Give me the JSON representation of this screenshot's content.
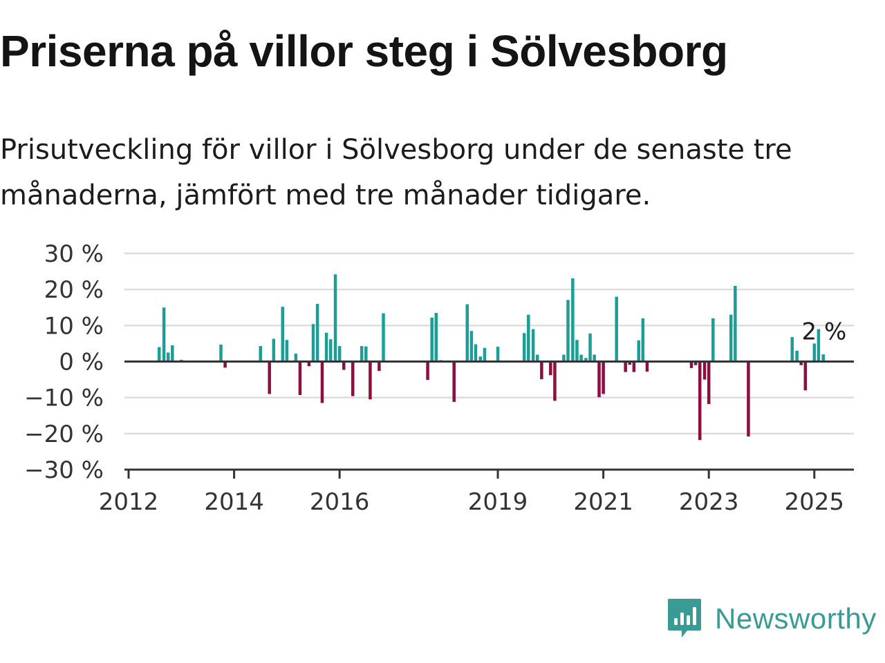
{
  "title": "Priserna på villor steg i Sölvesborg",
  "subtitle": "Prisutveckling för villor i Sölvesborg under de senaste tre månaderna, jämfört med tre månader tidigare.",
  "brand": {
    "name": "Newsworthy",
    "icon": "newsworthy-logo-icon",
    "color": "#3a9a94"
  },
  "colors": {
    "positive": "#1a9e96",
    "negative": "#8c0f3f",
    "grid": "#dddddd",
    "axis": "#333333"
  },
  "chart_data": {
    "type": "bar",
    "title": "",
    "xlabel": "",
    "ylabel": "",
    "ylim": [
      -30,
      30
    ],
    "xlim": [
      2012.0,
      2025.75
    ],
    "grid": true,
    "y_ticks": [
      30,
      20,
      10,
      0,
      -10,
      -20,
      -30
    ],
    "y_tick_labels": [
      "30 %",
      "20 %",
      "10 %",
      "0 %",
      "−10 %",
      "−20 %",
      "−30 %"
    ],
    "x_ticks": [
      2012,
      2014,
      2016,
      2019,
      2021,
      2023,
      2025
    ],
    "x_tick_labels": [
      "2012",
      "2014",
      "2016",
      "2019",
      "2021",
      "2023",
      "2025"
    ],
    "annotation": {
      "text": "2 %",
      "x": 2025.08,
      "value": 2
    },
    "series": [
      {
        "unit": "%",
        "points": [
          {
            "x": 2012.58,
            "y": 4
          },
          {
            "x": 2012.67,
            "y": 15
          },
          {
            "x": 2012.75,
            "y": 2.5
          },
          {
            "x": 2012.83,
            "y": 4.5
          },
          {
            "x": 2013.0,
            "y": 0.5
          },
          {
            "x": 2013.75,
            "y": 4.7
          },
          {
            "x": 2013.83,
            "y": -1.7
          },
          {
            "x": 2014.5,
            "y": 4.3
          },
          {
            "x": 2014.67,
            "y": -9
          },
          {
            "x": 2014.75,
            "y": 6.3
          },
          {
            "x": 2014.92,
            "y": 15.2
          },
          {
            "x": 2015.0,
            "y": 6
          },
          {
            "x": 2015.17,
            "y": 2.2
          },
          {
            "x": 2015.25,
            "y": -9.3
          },
          {
            "x": 2015.42,
            "y": -1.3
          },
          {
            "x": 2015.5,
            "y": 10.4
          },
          {
            "x": 2015.58,
            "y": 16
          },
          {
            "x": 2015.67,
            "y": -11.5
          },
          {
            "x": 2015.75,
            "y": 8
          },
          {
            "x": 2015.83,
            "y": 6.2
          },
          {
            "x": 2015.92,
            "y": 24.2
          },
          {
            "x": 2016.0,
            "y": 4.3
          },
          {
            "x": 2016.08,
            "y": -2.3
          },
          {
            "x": 2016.25,
            "y": -9.6
          },
          {
            "x": 2016.42,
            "y": 4.3
          },
          {
            "x": 2016.5,
            "y": 4.2
          },
          {
            "x": 2016.58,
            "y": -10.5
          },
          {
            "x": 2016.75,
            "y": -2.6
          },
          {
            "x": 2016.83,
            "y": 13.4
          },
          {
            "x": 2017.67,
            "y": -5.1
          },
          {
            "x": 2017.75,
            "y": 12.2
          },
          {
            "x": 2017.83,
            "y": 13.5
          },
          {
            "x": 2017.92,
            "y": 0.4
          },
          {
            "x": 2018.17,
            "y": -11.2
          },
          {
            "x": 2018.42,
            "y": 15.9
          },
          {
            "x": 2018.5,
            "y": 8.5
          },
          {
            "x": 2018.58,
            "y": 4.8
          },
          {
            "x": 2018.67,
            "y": 1.4
          },
          {
            "x": 2018.75,
            "y": 3.8
          },
          {
            "x": 2019.0,
            "y": 4.1
          },
          {
            "x": 2019.5,
            "y": 7.9
          },
          {
            "x": 2019.58,
            "y": 13
          },
          {
            "x": 2019.67,
            "y": 9
          },
          {
            "x": 2019.75,
            "y": 1.9
          },
          {
            "x": 2019.83,
            "y": -4.9
          },
          {
            "x": 2020.0,
            "y": -3.8
          },
          {
            "x": 2020.08,
            "y": -10.9
          },
          {
            "x": 2020.25,
            "y": 1.9
          },
          {
            "x": 2020.33,
            "y": 17.1
          },
          {
            "x": 2020.42,
            "y": 23.1
          },
          {
            "x": 2020.5,
            "y": 6
          },
          {
            "x": 2020.58,
            "y": 1.9
          },
          {
            "x": 2020.67,
            "y": 1
          },
          {
            "x": 2020.75,
            "y": 7.8
          },
          {
            "x": 2020.83,
            "y": 1.9
          },
          {
            "x": 2020.92,
            "y": -9.9
          },
          {
            "x": 2021.0,
            "y": -9
          },
          {
            "x": 2021.25,
            "y": 18
          },
          {
            "x": 2021.42,
            "y": -2.9
          },
          {
            "x": 2021.5,
            "y": -0.9
          },
          {
            "x": 2021.58,
            "y": -2.9
          },
          {
            "x": 2021.67,
            "y": 5.9
          },
          {
            "x": 2021.75,
            "y": 12
          },
          {
            "x": 2021.83,
            "y": -2.8
          },
          {
            "x": 2022.67,
            "y": -1.8
          },
          {
            "x": 2022.75,
            "y": -1
          },
          {
            "x": 2022.83,
            "y": -21.8
          },
          {
            "x": 2022.92,
            "y": -5
          },
          {
            "x": 2023.0,
            "y": -11.8
          },
          {
            "x": 2023.08,
            "y": 12
          },
          {
            "x": 2023.42,
            "y": 13
          },
          {
            "x": 2023.5,
            "y": 21
          },
          {
            "x": 2023.75,
            "y": -20.8
          },
          {
            "x": 2024.58,
            "y": 6.8
          },
          {
            "x": 2024.67,
            "y": 3
          },
          {
            "x": 2024.75,
            "y": -1
          },
          {
            "x": 2024.83,
            "y": -8
          },
          {
            "x": 2025.0,
            "y": 5
          },
          {
            "x": 2025.08,
            "y": 9
          },
          {
            "x": 2025.17,
            "y": 2
          }
        ]
      }
    ]
  }
}
